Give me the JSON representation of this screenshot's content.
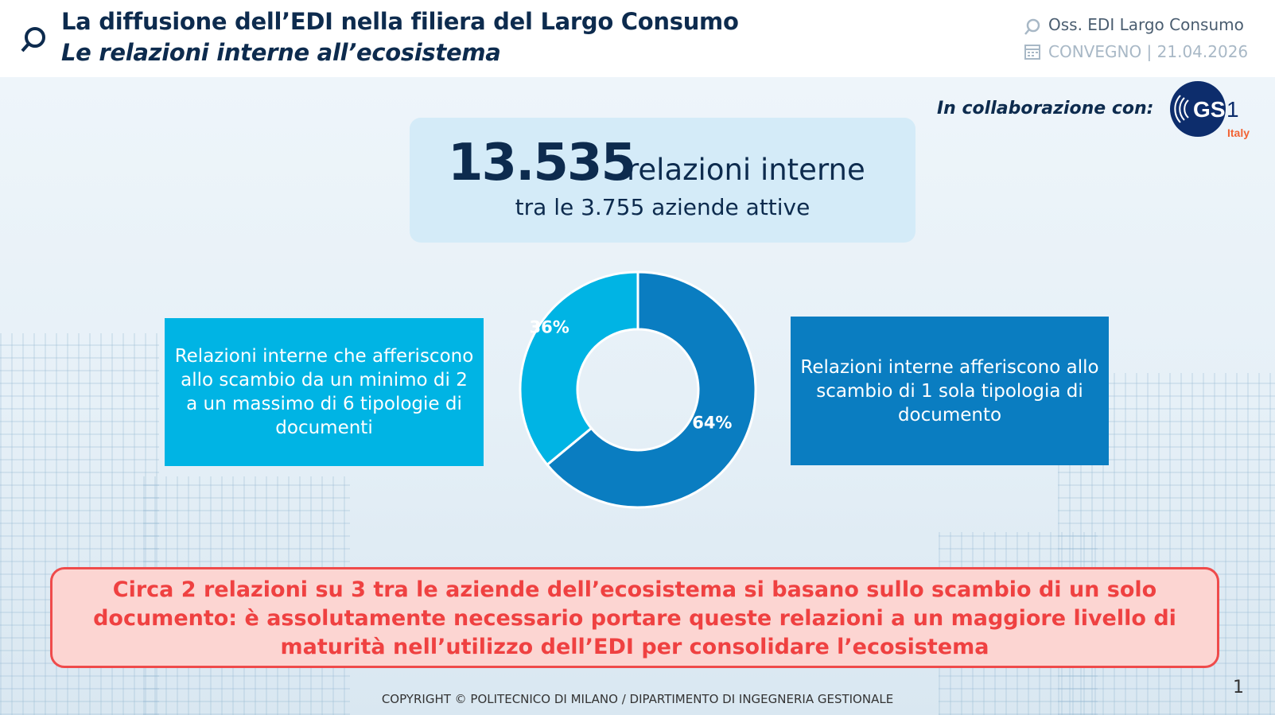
{
  "header": {
    "title": "La diffusione dell’EDI nella filiera del Largo Consumo",
    "subtitle": "Le relazioni interne all’ecosistema",
    "observatory": "Oss. EDI Largo Consumo",
    "event": "CONVEGNO | 21.04.2026",
    "observatory_icon": "magnifier-icon",
    "event_icon": "calendar-icon"
  },
  "collaboration": {
    "label": "In collaborazione con:",
    "logo_text": "GS1",
    "logo_sub": "Italy"
  },
  "headline": {
    "number": "13.535",
    "label": "relazioni interne",
    "sub": "tra le 3.755 aziende attive"
  },
  "left_box": "Relazioni interne che afferiscono allo scambio da un minimo di 2 a un massimo di 6 tipologie di documenti",
  "right_box": "Relazioni interne afferiscono allo scambio di 1 sola tipologia di documento",
  "chart_data": {
    "type": "pie",
    "donut": true,
    "categories": [
      "1 sola tipologia di documento",
      "da 2 a 6 tipologie di documenti"
    ],
    "values": [
      64,
      36
    ],
    "labels": [
      "64%",
      "36%"
    ],
    "colors": [
      "#0a7dc1",
      "#00b4e4"
    ]
  },
  "callout": "Circa 2 relazioni su 3 tra le aziende dell’ecosistema si basano sullo scambio di un solo documento: è assolutamente necessario portare queste relazioni a un maggiore livello di maturità nell’utilizzo dell’EDI per consolidare l’ecosistema",
  "footer": "COPYRIGHT © POLITECNICO DI MILANO / DIPARTIMENTO DI INGEGNERIA GESTIONALE",
  "page_number": "1"
}
